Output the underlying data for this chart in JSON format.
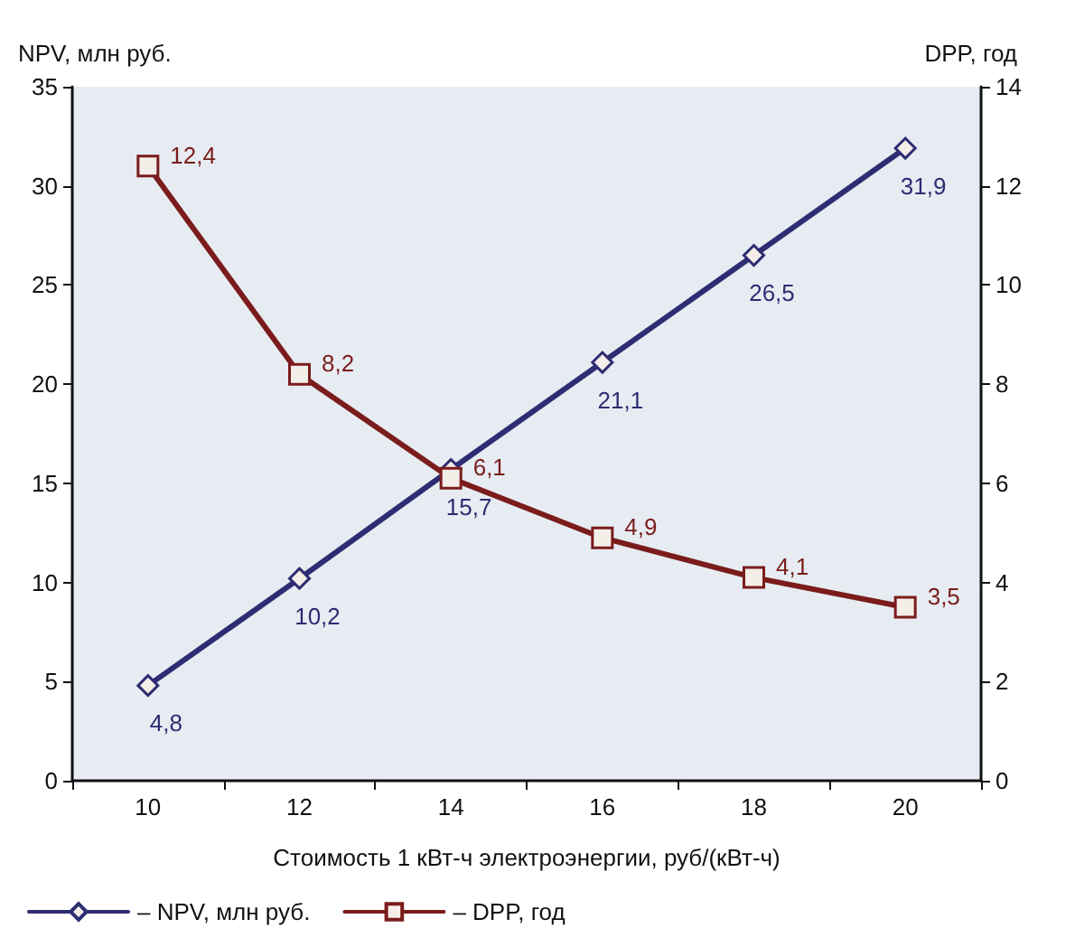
{
  "chart_data": {
    "type": "line",
    "xlabel": "Стоимость 1 кВт-ч электроэнергии, руб/(кВт-ч)",
    "ylabel": "NPV, млн руб.",
    "y2label": "DPP, год",
    "categories": [
      "10",
      "12",
      "14",
      "16",
      "18",
      "20"
    ],
    "series": [
      {
        "name": "– NPV, млн руб.",
        "color": "#2e2c72",
        "marker": "diamond",
        "values": [
          4.8,
          10.2,
          15.7,
          21.1,
          26.5,
          31.9
        ],
        "value_labels": [
          "4,8",
          "10,2",
          "15,7",
          "21,1",
          "26,5",
          "31,9"
        ]
      },
      {
        "name": "– DPP, год",
        "color": "#7b1c1c",
        "marker": "square",
        "axis": "y2",
        "values": [
          12.4,
          8.2,
          6.1,
          4.9,
          4.1,
          3.5
        ],
        "value_labels": [
          "12,4",
          "8,2",
          "6,1",
          "4,9",
          "4,1",
          "3,5"
        ]
      }
    ],
    "ylim": [
      0,
      35
    ],
    "yticks": [
      0,
      5,
      10,
      15,
      20,
      25,
      30,
      35
    ],
    "y2lim": [
      0,
      14
    ],
    "y2ticks": [
      0,
      2,
      4,
      6,
      8,
      10,
      12,
      14
    ],
    "grid": false,
    "legend": "bottom left",
    "line_style": "solid"
  }
}
